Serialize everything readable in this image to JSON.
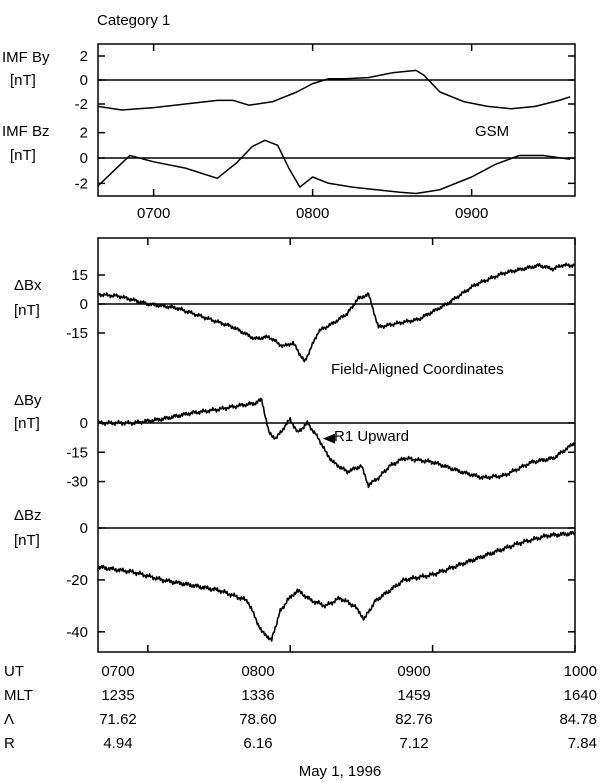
{
  "chart_data": [
    {
      "type": "line",
      "title": "Category 1",
      "panel": "imf",
      "annotation": "GSM",
      "xlim": [
        665,
        965
      ],
      "x_ticks": [
        700,
        800,
        900
      ],
      "x_tick_labels": [
        "0700",
        "0800",
        "0900"
      ],
      "series": [
        {
          "ylabel": [
            "IMF By",
            "[nT]"
          ],
          "ylim": [
            -3,
            3
          ],
          "y_ticks": [
            2,
            0,
            -2
          ],
          "y_tick_labels": [
            "2",
            "0",
            "-2"
          ],
          "zero_line": true,
          "x": [
            665,
            680,
            700,
            720,
            740,
            750,
            760,
            775,
            790,
            800,
            810,
            820,
            835,
            850,
            865,
            870,
            880,
            895,
            910,
            925,
            940,
            955,
            962
          ],
          "y": [
            -2.2,
            -2.5,
            -2.3,
            -2.0,
            -1.7,
            -1.7,
            -2.1,
            -1.8,
            -1.0,
            -0.3,
            0.1,
            0.1,
            0.2,
            0.6,
            0.8,
            0.4,
            -1.0,
            -1.8,
            -2.2,
            -2.4,
            -2.2,
            -1.7,
            -1.4
          ]
        },
        {
          "ylabel": [
            "IMF Bz",
            "[nT]"
          ],
          "ylim": [
            -3,
            3
          ],
          "y_ticks": [
            2,
            0,
            -2
          ],
          "y_tick_labels": [
            "2",
            "0",
            "-2"
          ],
          "zero_line": true,
          "x": [
            665,
            675,
            685,
            700,
            720,
            740,
            752,
            762,
            770,
            778,
            785,
            792,
            800,
            810,
            825,
            840,
            855,
            865,
            880,
            900,
            915,
            930,
            945,
            962
          ],
          "y": [
            -2.2,
            -1.0,
            0.2,
            -0.3,
            -0.8,
            -1.6,
            -0.4,
            0.9,
            1.4,
            1.0,
            -0.8,
            -2.3,
            -1.5,
            -2.0,
            -2.3,
            -2.5,
            -2.7,
            -2.8,
            -2.5,
            -1.5,
            -0.5,
            0.2,
            0.2,
            -0.1
          ]
        }
      ]
    },
    {
      "type": "line",
      "panel": "field-aligned",
      "annotation": "Field-Aligned Coordinates",
      "arrow_label": "R1 Upward",
      "arrow_target": [
        823,
        -8
      ],
      "xlim": [
        665,
        1000
      ],
      "x_ticks": [
        700,
        800,
        900,
        1000
      ],
      "series": [
        {
          "ylabel": [
            "ΔBx",
            "[nT]"
          ],
          "ylim": [
            -30,
            30
          ],
          "y_ticks": [
            15,
            0,
            -15
          ],
          "y_tick_labels": [
            "15",
            "0",
            "-15"
          ],
          "zero_line": true,
          "x": [
            665,
            680,
            700,
            720,
            740,
            760,
            775,
            785,
            795,
            802,
            810,
            820,
            830,
            840,
            848,
            855,
            862,
            875,
            890,
            910,
            930,
            950,
            975,
            985,
            990,
            1000
          ],
          "y": [
            5,
            4,
            0,
            -2,
            -7,
            -12,
            -18,
            -17,
            -22,
            -20,
            -30,
            -14,
            -10,
            -5,
            3,
            5,
            -12,
            -10,
            -8,
            0,
            10,
            16,
            20,
            18,
            20,
            20
          ]
        },
        {
          "ylabel": [
            "ΔBy",
            "[nT]"
          ],
          "ylim": [
            -42,
            22
          ],
          "y_ticks": [
            0,
            -15,
            -30
          ],
          "y_tick_labels": [
            "0",
            "-15",
            "-30"
          ],
          "zero_line": true,
          "x": [
            665,
            690,
            710,
            730,
            750,
            765,
            775,
            780,
            785,
            790,
            795,
            800,
            805,
            812,
            820,
            825,
            830,
            840,
            850,
            855,
            862,
            870,
            880,
            900,
            920,
            935,
            950,
            970,
            985,
            1000
          ],
          "y": [
            0,
            0,
            2,
            5,
            7,
            9,
            10,
            12,
            -5,
            -8,
            -3,
            2,
            -5,
            0,
            -8,
            -15,
            -20,
            -25,
            -22,
            -32,
            -28,
            -22,
            -18,
            -20,
            -25,
            -28,
            -27,
            -20,
            -18,
            -10
          ]
        },
        {
          "ylabel": [
            "ΔBz",
            "[nT]"
          ],
          "ylim": [
            -47,
            5
          ],
          "y_ticks": [
            0,
            -20,
            -40
          ],
          "y_tick_labels": [
            "0",
            "-20",
            "-40"
          ],
          "zero_line": true,
          "x": [
            665,
            690,
            710,
            730,
            750,
            770,
            780,
            787,
            793,
            798,
            805,
            815,
            825,
            835,
            845,
            852,
            860,
            870,
            880,
            900,
            920,
            940,
            960,
            980,
            1000
          ],
          "y": [
            -15,
            -17,
            -20,
            -22,
            -24,
            -28,
            -40,
            -43,
            -32,
            -28,
            -24,
            -28,
            -30,
            -27,
            -30,
            -35,
            -28,
            -24,
            -20,
            -18,
            -14,
            -10,
            -6,
            -3,
            -2
          ]
        }
      ]
    }
  ],
  "ephemeris": {
    "rows": [
      {
        "label": "UT",
        "values": [
          "0700",
          "0800",
          "0900",
          "1000"
        ]
      },
      {
        "label": "MLT",
        "values": [
          "1235",
          "1336",
          "1459",
          "1640"
        ]
      },
      {
        "label": "Λ",
        "values": [
          "71.62",
          "78.60",
          "82.76",
          "84.78"
        ]
      },
      {
        "label": "R",
        "values": [
          "4.94",
          "6.16",
          "7.12",
          "7.84"
        ]
      }
    ]
  },
  "date_label": "May 1, 1996"
}
